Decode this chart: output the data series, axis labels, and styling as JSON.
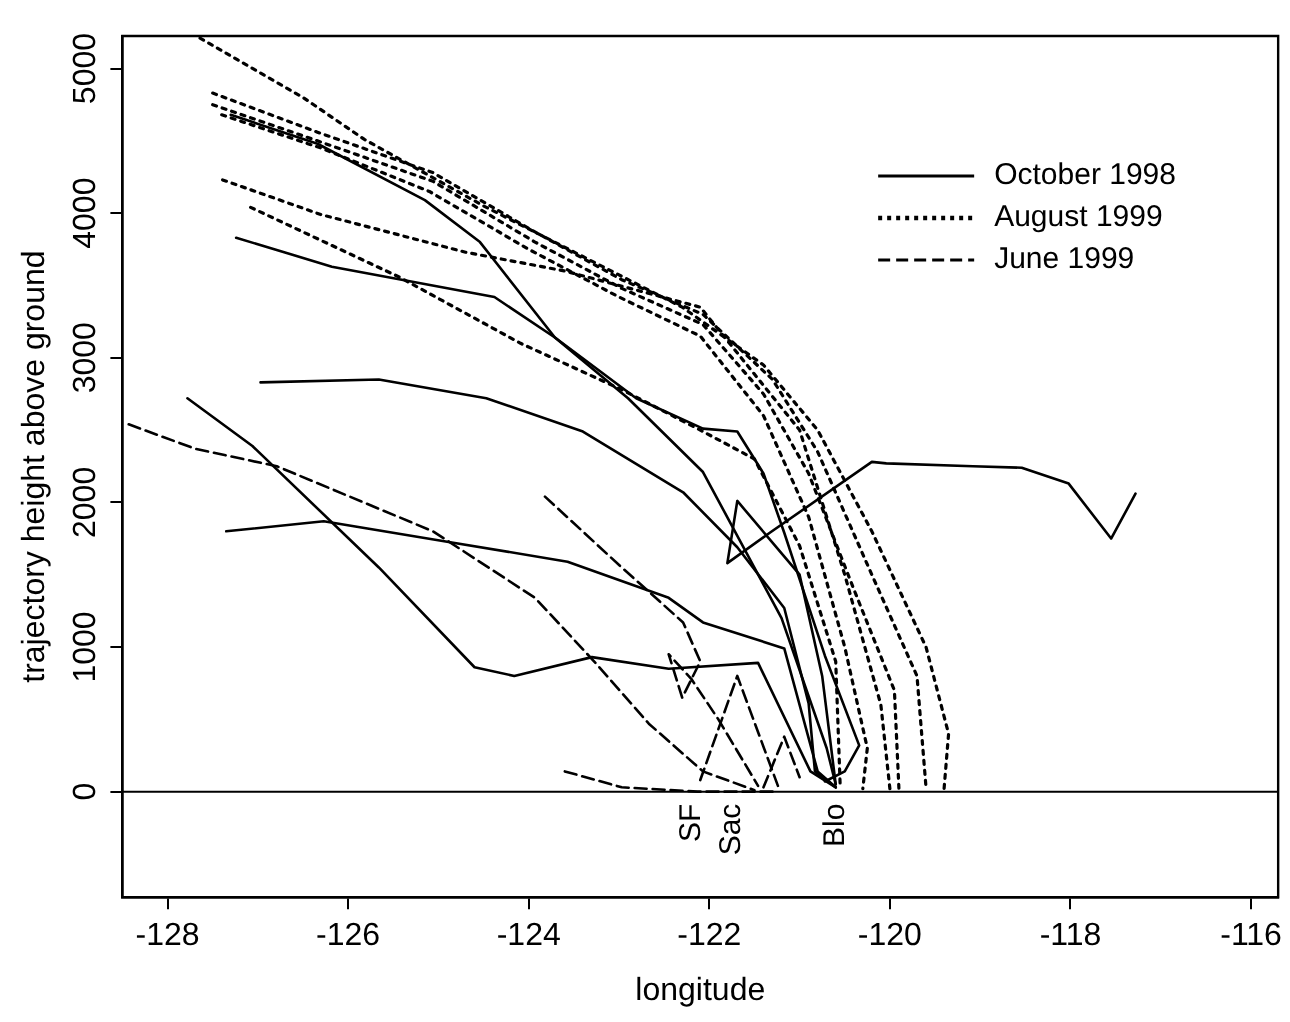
{
  "chart_data": {
    "type": "line",
    "xlabel": "longitude",
    "ylabel": "trajectory height above ground",
    "xlim": [
      -128.5,
      -115.7
    ],
    "ylim": [
      -730,
      5225
    ],
    "xticks": [
      -128,
      -126,
      -124,
      -122,
      -120,
      -118,
      -116
    ],
    "yticks": [
      0,
      1000,
      2000,
      3000,
      4000,
      5000
    ],
    "grid": false,
    "legend": "top right",
    "marker": "none",
    "ref_lines": [
      {
        "axis": "y",
        "value": 0,
        "color": "#000000",
        "line_style": "solid"
      }
    ],
    "annotations": [
      {
        "text": "SF",
        "x": -122.2,
        "y": 0
      },
      {
        "text": "Sac",
        "x": -121.75,
        "y": 0
      },
      {
        "text": "Blo",
        "x": -120.6,
        "y": 0
      }
    ],
    "series": [
      {
        "name": "October 1998",
        "color": "#000000",
        "line_style": "solid",
        "x": [
          -127.3,
          -126.34,
          -125.15,
          -124.54,
          -123.71,
          -122.9,
          -122.07,
          -121.2,
          -120.7,
          -120.6
        ],
        "values": [
          4680,
          4480,
          4090,
          3800,
          3140,
          2720,
          2210,
          1200,
          300,
          50
        ]
      },
      {
        "color": "#000000",
        "line_style": "solid",
        "x": [
          -127.24,
          -126.18,
          -124.38,
          -123.71,
          -122.81,
          -122.07,
          -121.69,
          -121.4,
          -121.17,
          -120.72,
          -120.34,
          -120.5,
          -120.72
        ],
        "values": [
          3830,
          3630,
          3420,
          3140,
          2720,
          2510,
          2490,
          2200,
          1790,
          940,
          320,
          140,
          70
        ]
      },
      {
        "color": "#000000",
        "line_style": "solid",
        "x": [
          -126.97,
          -125.66,
          -124.47,
          -123.4,
          -122.29,
          -121.69,
          -121.17,
          -120.9,
          -120.83,
          -120.6
        ],
        "values": [
          2830,
          2850,
          2720,
          2490,
          2070,
          1690,
          1270,
          610,
          140,
          30
        ]
      },
      {
        "color": "#000000",
        "line_style": "solid",
        "x": [
          -127.35,
          -126.27,
          -124.92,
          -123.57,
          -122.45,
          -122.07,
          -121.17,
          -120.8,
          -120.6
        ],
        "values": [
          1800,
          1870,
          1730,
          1590,
          1340,
          1170,
          990,
          140,
          30
        ]
      },
      {
        "color": "#000000",
        "line_style": "solid",
        "x": [
          -127.78,
          -127.06,
          -125.66,
          -124.6,
          -124.16,
          -123.3,
          -122.45,
          -121.46,
          -120.88,
          -120.6
        ],
        "values": [
          2720,
          2390,
          1550,
          860,
          800,
          930,
          850,
          890,
          140,
          30
        ]
      },
      {
        "color": "#000000",
        "line_style": "solid",
        "x": [
          -120.6,
          -120.75,
          -121.0,
          -121.69,
          -121.8,
          -121.33,
          -120.2,
          -120.04,
          -119.08,
          -118.54,
          -118.02,
          -117.55,
          -117.28
        ],
        "values": [
          50,
          800,
          1500,
          2010,
          1580,
          1790,
          2280,
          2270,
          2250,
          2240,
          2130,
          1750,
          2060
        ]
      },
      {
        "name": "August 1999",
        "color": "#000000",
        "line_style": "dotted",
        "x": [
          -127.64,
          -126.5,
          -125.82,
          -124.5,
          -123.4,
          -122.3,
          -121.4,
          -120.8,
          -120.2,
          -119.6,
          -119.35,
          -119.4
        ],
        "values": [
          5210,
          4800,
          4510,
          4050,
          3700,
          3350,
          2950,
          2500,
          1800,
          1000,
          400,
          20
        ]
      },
      {
        "color": "#000000",
        "line_style": "dotted",
        "x": [
          -127.5,
          -126.34,
          -125.06,
          -123.93,
          -122.97,
          -122.07,
          -121.3,
          -120.8,
          -120.2,
          -119.7,
          -119.6
        ],
        "values": [
          4830,
          4560,
          4280,
          3870,
          3540,
          3300,
          2850,
          2350,
          1500,
          800,
          30
        ]
      },
      {
        "color": "#000000",
        "line_style": "dotted",
        "x": [
          -127.5,
          -126.34,
          -125.06,
          -123.93,
          -122.97,
          -122.07,
          -121.4,
          -120.9,
          -120.4,
          -119.95,
          -119.9
        ],
        "values": [
          4750,
          4500,
          4220,
          3800,
          3480,
          3230,
          2750,
          2200,
          1400,
          700,
          20
        ]
      },
      {
        "color": "#000000",
        "line_style": "dotted",
        "x": [
          -127.4,
          -126.3,
          -125.1,
          -124,
          -123,
          -122.1,
          -121.4,
          -120.9,
          -120.5,
          -120.25,
          -120.3
        ],
        "values": [
          4680,
          4450,
          4150,
          3750,
          3420,
          3150,
          2600,
          1900,
          1000,
          300,
          20
        ]
      },
      {
        "color": "#000000",
        "line_style": "dotted",
        "x": [
          -127.39,
          -126.3,
          -124.7,
          -123.6,
          -122.1,
          -121.0,
          -120.5,
          -120.1,
          -120.0
        ],
        "values": [
          4230,
          3990,
          3730,
          3600,
          3350,
          2500,
          1500,
          600,
          20
        ]
      },
      {
        "color": "#000000",
        "line_style": "dotted",
        "x": [
          -127.08,
          -125.44,
          -124.09,
          -122.97,
          -122.07,
          -121.5,
          -121.0,
          -120.6,
          -120.55
        ],
        "values": [
          4040,
          3560,
          3100,
          2780,
          2490,
          2300,
          1700,
          900,
          30
        ]
      },
      {
        "name": "June 1999",
        "color": "#000000",
        "line_style": "dashed",
        "x": [
          -128.43,
          -127.69,
          -126.79,
          -125.06,
          -123.93,
          -123.26,
          -122.67,
          -122.07,
          -121.5
        ],
        "values": [
          2540,
          2370,
          2250,
          1800,
          1340,
          890,
          470,
          140,
          10
        ]
      },
      {
        "color": "#000000",
        "line_style": "dashed",
        "x": [
          -123.82,
          -122.97,
          -122.29,
          -122.1,
          -122.3,
          -122.45,
          -122.2,
          -121.9,
          -121.46
        ],
        "values": [
          2040,
          1550,
          1170,
          900,
          650,
          950,
          780,
          500,
          40
        ]
      },
      {
        "color": "#000000",
        "line_style": "dashed",
        "x": [
          -123.6,
          -122.97,
          -122.13,
          -121.3
        ],
        "values": [
          140,
          30,
          0,
          0
        ]
      },
      {
        "color": "#000000",
        "line_style": "dashed",
        "x": [
          -122.1,
          -121.69,
          -121.24
        ],
        "values": [
          80,
          800,
          40
        ]
      },
      {
        "color": "#000000",
        "line_style": "dashed",
        "x": [
          -121.4,
          -121.17,
          -121.0
        ],
        "values": [
          30,
          380,
          100
        ]
      }
    ]
  }
}
